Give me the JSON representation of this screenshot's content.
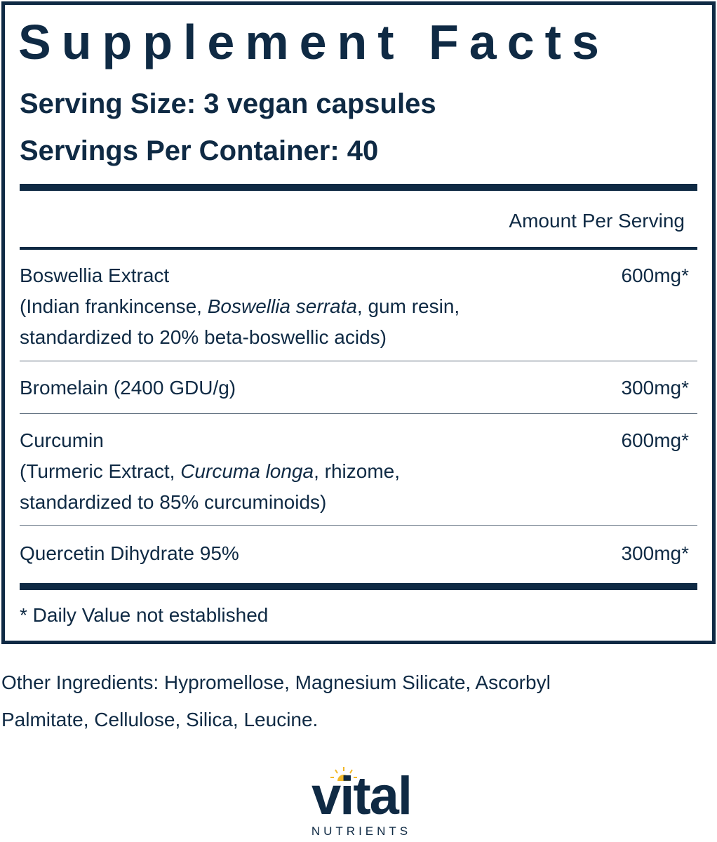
{
  "panel": {
    "title": "Supplement Facts",
    "serving_size": "Serving Size: 3 vegan capsules",
    "servings_per_container": "Servings Per Container: 40",
    "amount_header": "Amount Per Serving",
    "rows": [
      {
        "name": "Boswellia Extract",
        "detail_pre": "(Indian frankincense, ",
        "detail_italic": "Boswellia serrata",
        "detail_post": ", gum resin,",
        "detail2": "standardized to 20% beta-boswellic acids)",
        "amount": "600mg*"
      },
      {
        "name": "Bromelain (2400 GDU/g)",
        "amount": "300mg*"
      },
      {
        "name": "Curcumin",
        "detail_pre": "(Turmeric Extract, ",
        "detail_italic": "Curcuma longa",
        "detail_post": ", rhizome,",
        "detail2": "standardized to 85% curcuminoids)",
        "amount": "600mg*"
      },
      {
        "name": "Quercetin Dihydrate 95%",
        "amount": "300mg*"
      }
    ],
    "footnote": "* Daily Value not established"
  },
  "other_ingredients": "Other Ingredients: Hypromellose, Magnesium Silicate, Ascorbyl Palmitate, Cellulose, Silica, Leucine.",
  "logo": {
    "word": "vital",
    "sub": "NUTRIENTS"
  },
  "colors": {
    "navy": "#0f2a44",
    "sun": "#f2b829"
  }
}
